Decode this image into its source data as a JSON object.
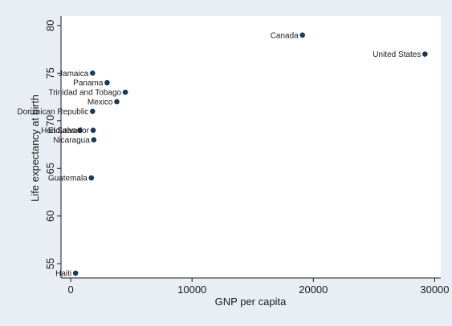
{
  "chart_data": {
    "type": "scatter",
    "title": "",
    "xlabel": "GNP per capita",
    "ylabel": "Life expectancy at birth",
    "xlim": [
      -800,
      30500
    ],
    "ylim": [
      53.5,
      81.0
    ],
    "x_ticks": [
      0,
      10000,
      20000,
      30000
    ],
    "y_ticks": [
      55,
      60,
      65,
      70,
      75,
      80
    ],
    "grid": false,
    "colors": {
      "outer_background": "#e8eef4",
      "plot_background": "#ffffff",
      "marker": "#1a3a5c",
      "text": "#1a1a1a"
    },
    "points": [
      {
        "label": "Canada",
        "x": 19100,
        "y": 79
      },
      {
        "label": "United States",
        "x": 29200,
        "y": 77
      },
      {
        "label": "Jamaica",
        "x": 1800,
        "y": 75
      },
      {
        "label": "Panama",
        "x": 3000,
        "y": 74
      },
      {
        "label": "Trinidad and Tobago",
        "x": 4500,
        "y": 73
      },
      {
        "label": "Mexico",
        "x": 3800,
        "y": 72
      },
      {
        "label": "Dominican Republic",
        "x": 1800,
        "y": 71
      },
      {
        "label": "El Salvador",
        "x": 1850,
        "y": 69
      },
      {
        "label": "Honduras",
        "x": 750,
        "y": 69
      },
      {
        "label": "Nicaragua",
        "x": 1900,
        "y": 68
      },
      {
        "label": "Guatemala",
        "x": 1700,
        "y": 64
      },
      {
        "label": "Haiti",
        "x": 400,
        "y": 54
      }
    ]
  }
}
